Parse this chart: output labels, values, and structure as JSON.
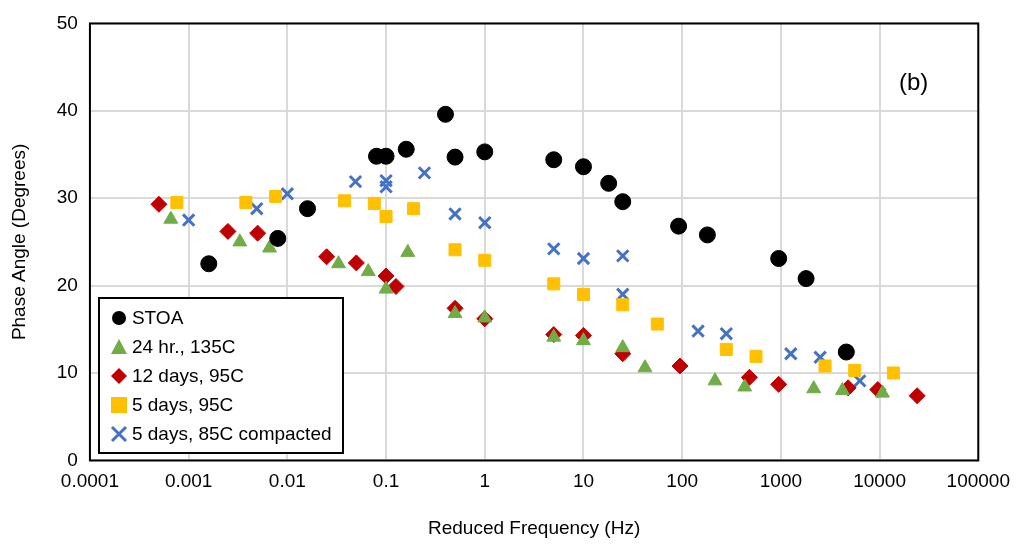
{
  "chart_data": {
    "type": "scatter",
    "xlabel": "Reduced Frequency (Hz)",
    "ylabel": "Phase Angle (Degrees)",
    "annotations": [
      "(b)"
    ],
    "log": "x",
    "grid": true,
    "legend": "bottom left",
    "xlim": [
      0.0001,
      100000
    ],
    "xticks": [
      0.0001,
      0.001,
      0.01,
      0.1,
      1,
      10,
      100,
      1000,
      10000,
      100000
    ],
    "ylim": [
      0,
      50
    ],
    "yticks": [
      0,
      10,
      20,
      30,
      40,
      50
    ],
    "series": [
      {
        "name": "STOA",
        "color": "#000000",
        "marker": "circle",
        "x": [
          0.0016,
          0.008,
          0.016,
          0.08,
          0.1,
          0.16,
          0.4,
          0.5,
          1,
          5,
          10,
          18,
          25,
          92,
          180,
          950,
          1800,
          4600
        ],
        "values": [
          22.5,
          25.4,
          28.8,
          34.8,
          34.8,
          35.6,
          39.6,
          34.7,
          35.3,
          34.4,
          33.6,
          31.7,
          29.6,
          26.8,
          25.8,
          23.1,
          20.8,
          12.4
        ]
      },
      {
        "name": "24 hr., 135C",
        "color": "#70ad47",
        "marker": "triangle",
        "x": [
          0.00066,
          0.0033,
          0.0066,
          0.033,
          0.066,
          0.1,
          0.166,
          0.5,
          1,
          5,
          10,
          25,
          42,
          215,
          430,
          2150,
          4200,
          10700
        ],
        "values": [
          27.6,
          25.0,
          24.3,
          22.5,
          21.6,
          19.6,
          23.8,
          16.8,
          16.3,
          14.1,
          13.7,
          12.9,
          10.6,
          9.1,
          8.4,
          8.2,
          8.0,
          7.7
        ]
      },
      {
        "name": "12 days, 95C",
        "color": "#c00000",
        "marker": "diamond",
        "x": [
          0.0005,
          0.0025,
          0.005,
          0.025,
          0.05,
          0.1,
          0.126,
          0.5,
          1,
          5,
          10,
          25,
          95,
          480,
          950,
          4800,
          9600,
          24000
        ],
        "values": [
          29.3,
          26.2,
          26.0,
          23.3,
          22.6,
          21.1,
          19.9,
          17.4,
          16.2,
          14.4,
          14.3,
          12.2,
          10.8,
          9.5,
          8.7,
          8.3,
          8.1,
          7.4
        ]
      },
      {
        "name": "5 days, 95C",
        "color": "#ffc000",
        "marker": "square",
        "x": [
          0.00076,
          0.0038,
          0.0076,
          0.038,
          0.076,
          0.1,
          0.19,
          0.5,
          1,
          5,
          10,
          25,
          56,
          280,
          560,
          2800,
          5600,
          13800
        ],
        "values": [
          29.5,
          29.5,
          30.2,
          29.7,
          29.4,
          27.9,
          28.8,
          24.1,
          22.9,
          20.2,
          19.0,
          17.8,
          15.6,
          12.7,
          11.9,
          10.8,
          10.3,
          10.0
        ]
      },
      {
        "name": "5 days, 85C compacted",
        "color": "#4472c4",
        "marker": "cross",
        "x": [
          0.001,
          0.0049,
          0.01,
          0.049,
          0.1,
          0.1,
          0.245,
          0.5,
          1,
          5,
          10,
          25,
          25,
          145,
          280,
          1260,
          2500,
          6300
        ],
        "values": [
          27.5,
          28.8,
          30.5,
          31.9,
          32.0,
          31.3,
          32.9,
          28.2,
          27.2,
          24.2,
          23.1,
          23.4,
          19.0,
          14.8,
          14.5,
          12.2,
          11.8,
          9.1
        ]
      }
    ]
  }
}
